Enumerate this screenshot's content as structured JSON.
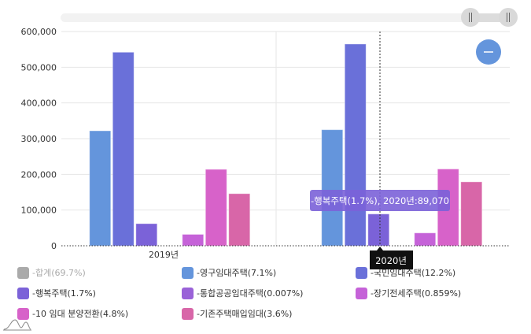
{
  "chart_data": {
    "type": "bar",
    "categories": [
      "2019년",
      "2020년"
    ],
    "ylim": [
      0,
      600000
    ],
    "yticks": [
      "0",
      "100,000",
      "200,000",
      "300,000",
      "400,000",
      "500,000",
      "600,000"
    ],
    "grid": true,
    "legend_placement": "bottom",
    "series": [
      {
        "name": "-영구임대주택(7.1%)",
        "color": "#6495dc",
        "values": [
          322000,
          325000
        ]
      },
      {
        "name": "-국민임대주택(12.2%)",
        "color": "#6a70d9",
        "values": [
          542000,
          565000
        ]
      },
      {
        "name": "-행복주택(1.7%)",
        "color": "#7b62d8",
        "values": [
          62000,
          89070
        ]
      },
      {
        "name": "-통합공공임대주택(0.007%)",
        "color": "#9a62d8",
        "values": [
          0,
          0
        ]
      },
      {
        "name": "-장기전세주택(0.859%)",
        "color": "#c562d8",
        "values": [
          32000,
          36000
        ]
      },
      {
        "name": "-10  임대 분양전환(4.8%)",
        "color": "#d762c9",
        "values": [
          214000,
          215000
        ]
      },
      {
        "name": "-기존주택매입임대(3.6%)",
        "color": "#d866a8",
        "values": [
          146000,
          179000
        ]
      }
    ],
    "hidden_series": [
      {
        "name": "-합계(69.7%)",
        "color": "#aaaaaa"
      }
    ],
    "tooltip": {
      "text": "-행복주택(1.7%), 2020년:89,070",
      "category_label": "2020년"
    }
  }
}
